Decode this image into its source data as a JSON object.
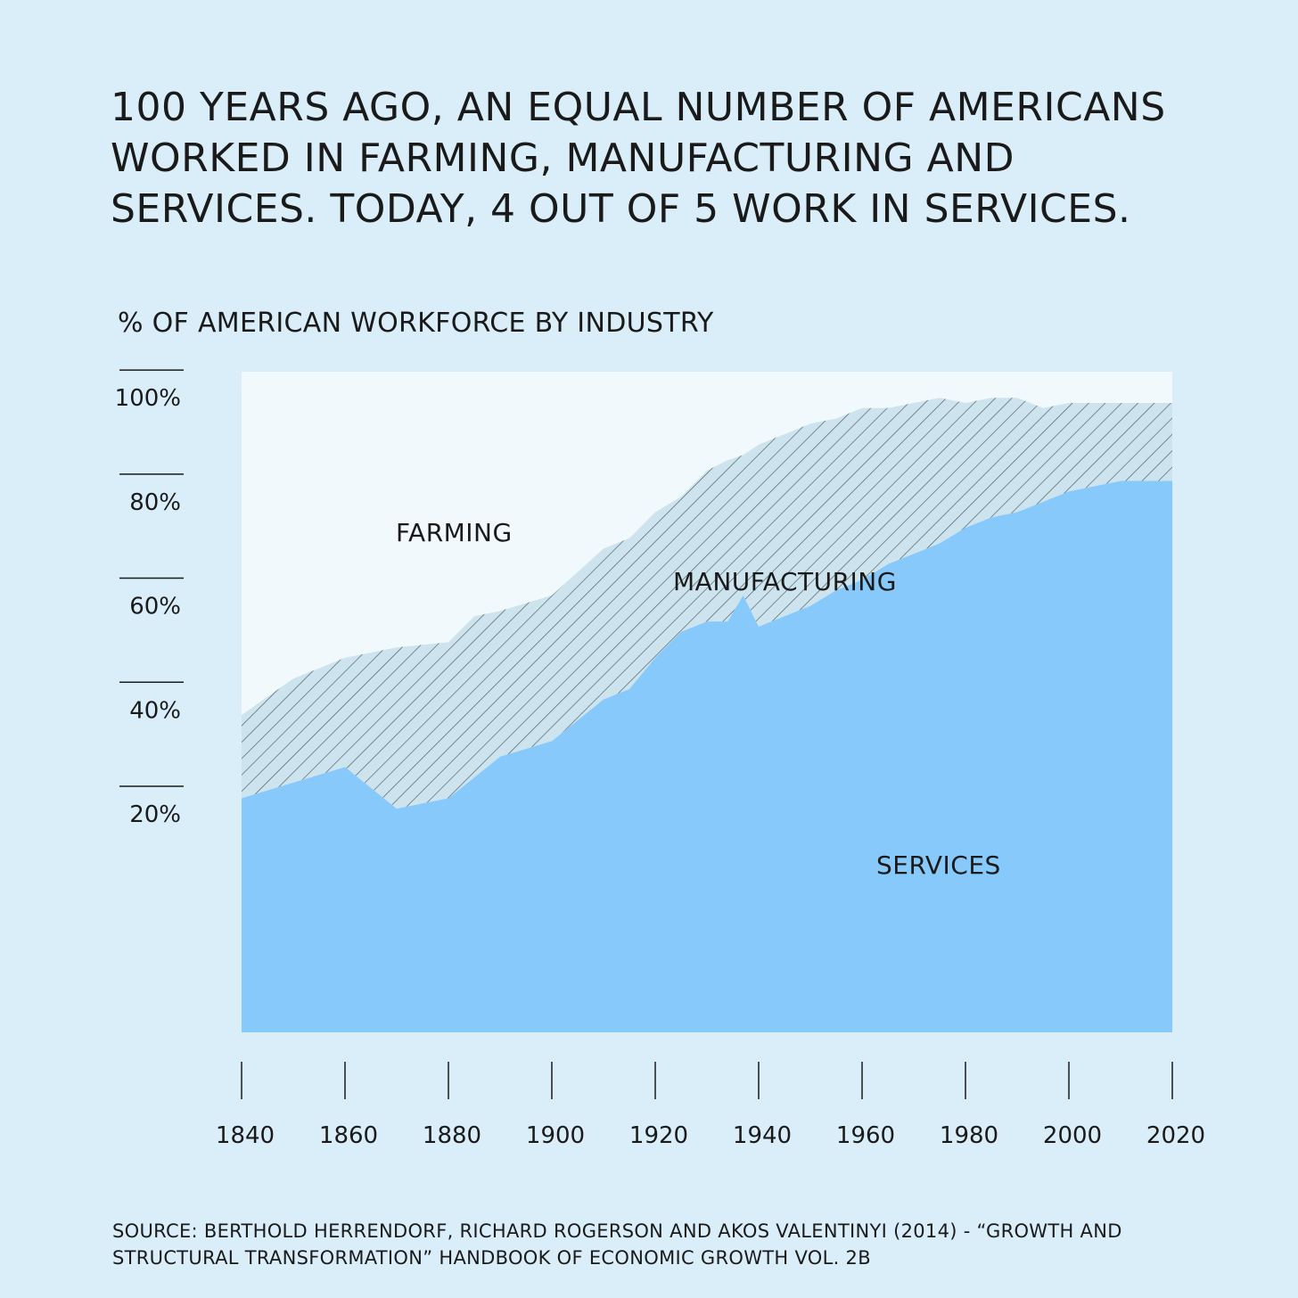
{
  "headline": {
    "line1": "100 YEARS AGO, AN EQUAL NUMBER OF AMERICANS",
    "line2": "WORKED IN FARMING, MANUFACTURING AND",
    "line3": "SERVICES. TODAY, 4 OUT OF 5 WORK IN SERVICES."
  },
  "subtitle": "% OF AMERICAN WORKFORCE BY INDUSTRY",
  "source": {
    "line1": "SOURCE: BERTHOLD HERRENDORF, RICHARD ROGERSON AND AKOS VALENTINYI (2014) - “GROWTH AND",
    "line2": "STRUCTURAL TRANSFORMATION” HANDBOOK OF ECONOMIC GROWTH VOL. 2B"
  },
  "colors": {
    "background": "#d9eef9",
    "farming": "#f1f9fd",
    "manufacturing": "#cde4ee",
    "services": "#88c9fb",
    "hatch": "#4a5a60"
  },
  "chart_data": {
    "type": "area",
    "stacked": true,
    "title": "% OF AMERICAN WORKFORCE BY INDUSTRY",
    "xlabel": "",
    "ylabel": "",
    "xlim": [
      1840,
      2020
    ],
    "ylim": [
      -22,
      105
    ],
    "x_ticks": [
      1840,
      1860,
      1880,
      1900,
      1920,
      1940,
      1960,
      1980,
      2000,
      2020
    ],
    "x_tick_labels": [
      "1840",
      "1860",
      "1880",
      "1900",
      "1920",
      "1940",
      "1960",
      "1980",
      "2000",
      "2020"
    ],
    "y_ticks": [
      20,
      40,
      60,
      80,
      100
    ],
    "y_tick_labels": [
      "20%",
      "40%",
      "60%",
      "80%",
      "100%"
    ],
    "region_labels": [
      "FARMING",
      "MANUFACTURING",
      "SERVICES"
    ],
    "x": [
      1840,
      1850,
      1860,
      1870,
      1880,
      1885,
      1890,
      1900,
      1910,
      1915,
      1920,
      1925,
      1930,
      1934,
      1937,
      1940,
      1945,
      1950,
      1955,
      1960,
      1965,
      1970,
      1975,
      1980,
      1985,
      1990,
      1995,
      2000,
      2010,
      2020
    ],
    "series": [
      {
        "name": "SERVICES",
        "values": [
          23,
          26,
          29,
          21,
          23,
          27,
          31,
          34,
          42,
          44,
          50,
          55,
          57,
          57,
          62,
          56,
          58,
          60,
          63,
          65,
          68,
          70,
          72,
          75,
          77,
          78,
          80,
          82,
          84,
          84
        ]
      },
      {
        "name": "MANUFACTURING",
        "values": [
          16,
          20,
          21,
          31,
          30,
          31,
          28,
          28,
          29,
          29,
          28,
          26,
          29,
          31,
          27,
          35,
          35,
          35,
          33,
          33,
          30,
          29,
          28,
          24,
          23,
          22,
          18,
          17,
          15,
          15
        ]
      },
      {
        "name": "FARMING",
        "values": [
          61,
          54,
          50,
          48,
          47,
          42,
          41,
          38,
          29,
          27,
          22,
          19,
          14,
          12,
          11,
          9,
          7,
          5,
          4,
          2,
          2,
          1,
          0,
          1,
          0,
          0,
          2,
          1,
          1,
          1
        ]
      }
    ]
  }
}
